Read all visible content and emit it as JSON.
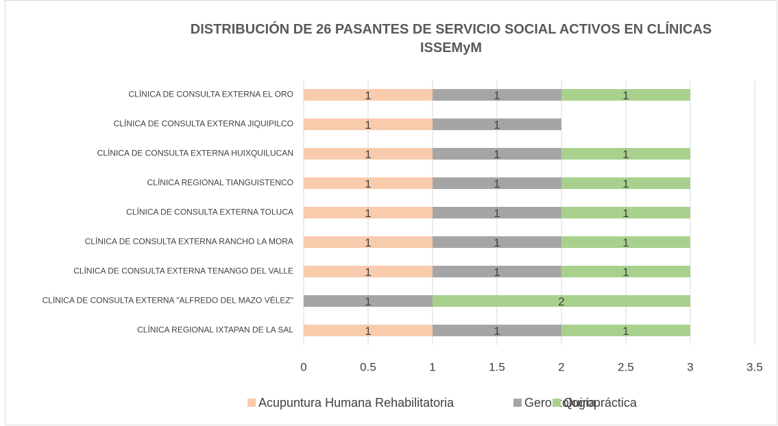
{
  "chart_data": {
    "type": "stacked_bar_horizontal",
    "title": "DISTRIBUCIÓN DE 26 PASANTES DE SERVICIO SOCIAL ACTIVOS EN CLÍNICAS ISSEMyM",
    "categories": [
      "CLÍNICA DE CONSULTA EXTERNA EL ORO",
      "CLÍNICA DE CONSULTA EXTERNA JIQUIPILCO",
      "CLÍNICA DE CONSULTA EXTERNA HUIXQUILUCAN",
      "CLÍNICA REGIONAL TIANGUISTENCO",
      "CLÍNICA DE CONSULTA EXTERNA TOLUCA",
      "CLÍNICA DE CONSULTA EXTERNA RANCHO LA MORA",
      "CLÍNICA DE CONSULTA EXTERNA TENANGO DEL VALLE",
      "CLÍNICA DE CONSULTA EXTERNA \"ALFREDO DEL MAZO VÉLEZ\"",
      "CLÍNICA REGIONAL IXTAPAN DE LA SAL"
    ],
    "series": [
      {
        "name": "Acupuntura Humana Rehabilitatoria",
        "color": "#f8cbad",
        "values": [
          1,
          1,
          1,
          1,
          1,
          1,
          1,
          null,
          1
        ]
      },
      {
        "name": "Gerontología",
        "color": "#a5a5a5",
        "values": [
          1,
          1,
          1,
          1,
          1,
          1,
          1,
          1,
          1
        ]
      },
      {
        "name": "Quiropráctica",
        "color": "#a9d18e",
        "values": [
          1,
          null,
          1,
          1,
          1,
          1,
          1,
          2,
          1
        ]
      }
    ],
    "xlim": [
      0,
      3.5
    ],
    "xticks": [
      0,
      0.5,
      1,
      1.5,
      2,
      2.5,
      3,
      3.5
    ],
    "grid": true,
    "legend": "bottom"
  }
}
